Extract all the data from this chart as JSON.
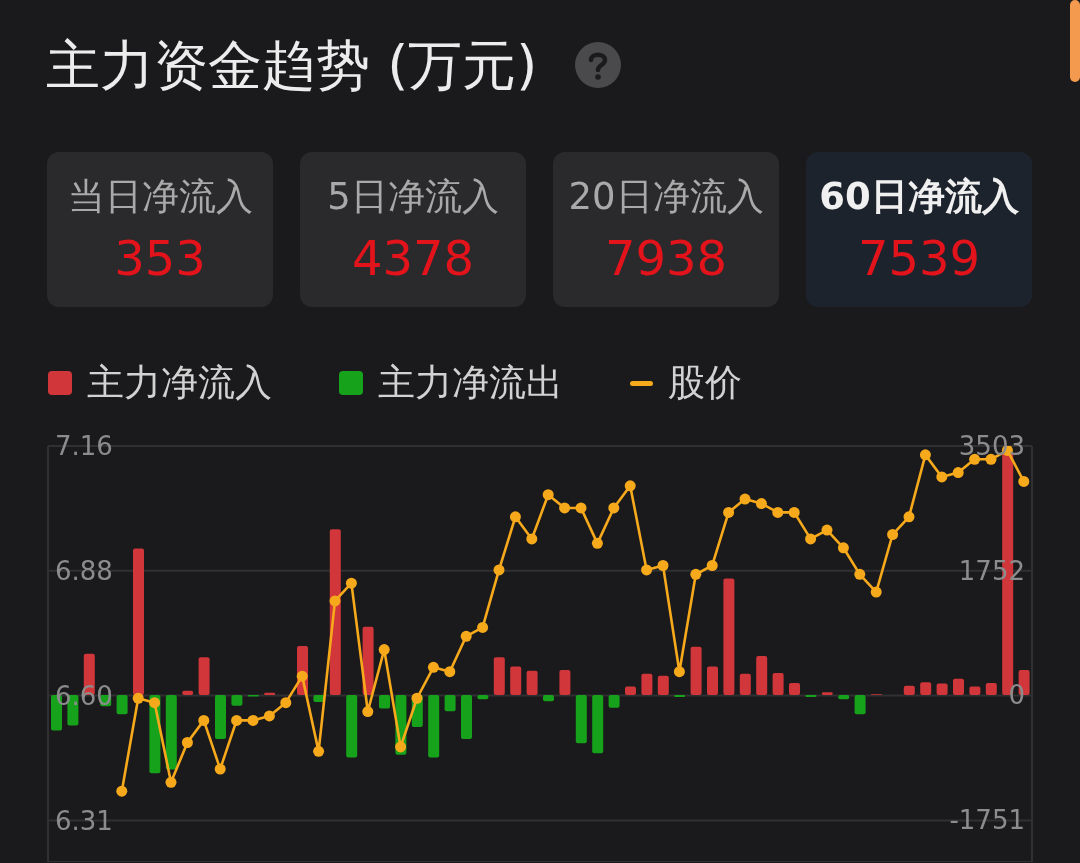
{
  "chart_data": [
    {
      "type": "other",
      "title": "主力资金趋势 (万元)",
      "categories": [
        "当日净流入",
        "5日净流入",
        "20日净流入",
        "60日净流入"
      ],
      "values": [
        353,
        4378,
        7938,
        7539
      ],
      "data_labels": true,
      "color": "#e3131b",
      "colors": [
        "#2a2a2c",
        "#2a2a2c",
        "#2a2a2c",
        "#1d232d"
      ]
    },
    {
      "type": "bar",
      "stacked": true,
      "legend": "top left",
      "grid": "y",
      "marker": "circle",
      "line_style": "solid",
      "categories": [
        null,
        null,
        null,
        null,
        null,
        null,
        null,
        null,
        null,
        null,
        null,
        null,
        null,
        null,
        null,
        null,
        null,
        null,
        null,
        null,
        null,
        null,
        null,
        null,
        null,
        null,
        null,
        null,
        null,
        null,
        null,
        null,
        null,
        null,
        null,
        null,
        null,
        null,
        null,
        null,
        null,
        null,
        null,
        null,
        null,
        null,
        null,
        null,
        null,
        null,
        null,
        null,
        null,
        null,
        null,
        null,
        null,
        null,
        null,
        null
      ],
      "ylim": [
        6.22,
        7.16
      ],
      "yticks": [
        {
          "value": 6.314,
          "label": "6.31"
        },
        {
          "value": 6.596,
          "label": "6.60"
        },
        {
          "value": 6.878,
          "label": "6.88"
        },
        7.16
      ],
      "y2lim": [
        -2350,
        3503
      ],
      "y2ticks": [
        -1751,
        0,
        1752,
        3503
      ],
      "series": [
        {
          "name": "主力净流入",
          "color": "#d0363a",
          "axis": "y2",
          "values": [
            null,
            null,
            580,
            null,
            null,
            2060,
            null,
            null,
            60,
            530,
            null,
            null,
            null,
            30,
            null,
            690,
            null,
            2330,
            null,
            960,
            null,
            null,
            null,
            null,
            null,
            null,
            null,
            530,
            400,
            340,
            null,
            350,
            null,
            null,
            null,
            120,
            300,
            270,
            null,
            680,
            400,
            1640,
            300,
            550,
            310,
            170,
            null,
            40,
            null,
            null,
            10,
            null,
            130,
            180,
            160,
            230,
            120,
            170,
            3400,
            350
          ]
        },
        {
          "name": "主力净流出",
          "color": "#17a21b",
          "axis": "y2",
          "values": [
            -500,
            -430,
            null,
            -160,
            -270,
            null,
            -1100,
            -1050,
            null,
            null,
            -620,
            -150,
            -20,
            null,
            null,
            null,
            -100,
            null,
            -880,
            null,
            -190,
            -840,
            -450,
            -880,
            -230,
            -620,
            -60,
            null,
            null,
            null,
            -90,
            null,
            -680,
            -820,
            -180,
            null,
            null,
            null,
            -30,
            null,
            null,
            null,
            null,
            null,
            null,
            null,
            -30,
            null,
            -60,
            -270,
            null,
            null,
            null,
            null,
            null,
            null,
            null,
            null,
            null,
            null
          ]
        },
        {
          "name": "股价",
          "type": "line",
          "color": "#f7a91c",
          "values": [
            null,
            null,
            null,
            null,
            6.38,
            6.59,
            6.58,
            6.4,
            6.49,
            6.54,
            6.43,
            6.54,
            6.54,
            6.55,
            6.58,
            6.64,
            6.47,
            6.81,
            6.85,
            6.56,
            6.7,
            6.48,
            6.59,
            6.66,
            6.65,
            6.73,
            6.75,
            6.88,
            7.0,
            6.95,
            7.05,
            7.02,
            7.02,
            6.94,
            7.02,
            7.07,
            6.88,
            6.89,
            6.65,
            6.87,
            6.89,
            7.01,
            7.04,
            7.03,
            7.01,
            7.01,
            6.95,
            6.97,
            6.93,
            6.87,
            6.83,
            6.96,
            7.0,
            7.14,
            7.09,
            7.1,
            7.13,
            7.13,
            7.15,
            7.08
          ]
        }
      ]
    }
  ]
}
